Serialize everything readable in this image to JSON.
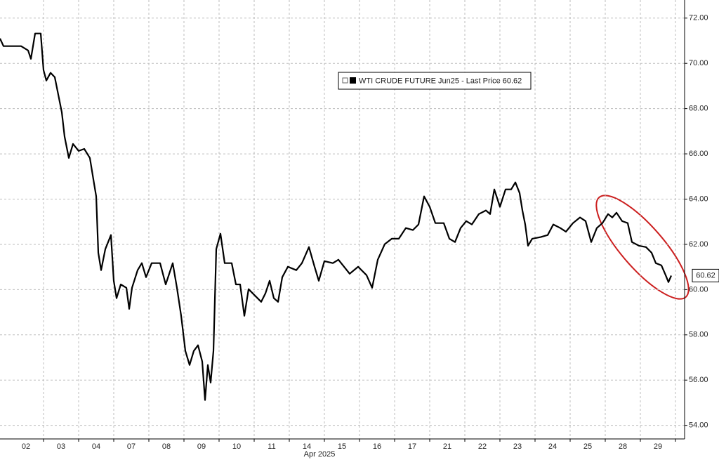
{
  "chart_data": {
    "type": "line",
    "x_label": "Apr 2025",
    "xlim": [
      -0.74,
      18.76
    ],
    "xticks": [
      {
        "value": 0,
        "label": "02"
      },
      {
        "value": 1,
        "label": "03"
      },
      {
        "value": 2,
        "label": "04"
      },
      {
        "value": 3,
        "label": "07"
      },
      {
        "value": 4,
        "label": "08"
      },
      {
        "value": 5,
        "label": "09"
      },
      {
        "value": 6,
        "label": "10"
      },
      {
        "value": 7,
        "label": "11"
      },
      {
        "value": 8,
        "label": "14"
      },
      {
        "value": 9,
        "label": "15"
      },
      {
        "value": 10,
        "label": "16"
      },
      {
        "value": 11,
        "label": "17"
      },
      {
        "value": 12,
        "label": "21"
      },
      {
        "value": 13,
        "label": "22"
      },
      {
        "value": 14,
        "label": "23"
      },
      {
        "value": 15,
        "label": "24"
      },
      {
        "value": 16,
        "label": "25"
      },
      {
        "value": 17,
        "label": "28"
      },
      {
        "value": 18,
        "label": "29"
      }
    ],
    "ylim": [
      53.4,
      72.8
    ],
    "yticks": [
      {
        "value": 54,
        "label": "54.00"
      },
      {
        "value": 56,
        "label": "56.00"
      },
      {
        "value": 58,
        "label": "58.00"
      },
      {
        "value": 60,
        "label": "60.00"
      },
      {
        "value": 62,
        "label": "62.00"
      },
      {
        "value": 64,
        "label": "64.00"
      },
      {
        "value": 66,
        "label": "66.00"
      },
      {
        "value": 68,
        "label": "68.00"
      },
      {
        "value": 70,
        "label": "70.00"
      },
      {
        "value": 72,
        "label": "72.00"
      }
    ],
    "grid": true,
    "last_price": 60.62,
    "x": [
      -0.74,
      -0.64,
      -0.14,
      0.06,
      0.14,
      0.26,
      0.42,
      0.5,
      0.58,
      0.7,
      0.82,
      0.9,
      1.02,
      1.1,
      1.22,
      1.34,
      1.5,
      1.66,
      1.82,
      1.94,
      2.0,
      2.06,
      2.14,
      2.26,
      2.42,
      2.5,
      2.58,
      2.7,
      2.86,
      2.94,
      3.02,
      3.18,
      3.3,
      3.42,
      3.58,
      3.82,
      3.98,
      4.18,
      4.3,
      4.42,
      4.54,
      4.66,
      4.78,
      4.9,
      5.02,
      5.1,
      5.18,
      5.26,
      5.34,
      5.42,
      5.54,
      5.66,
      5.86,
      5.98,
      6.1,
      6.22,
      6.34,
      6.5,
      6.7,
      6.82,
      6.94,
      7.06,
      7.18,
      7.3,
      7.46,
      7.7,
      7.86,
      8.06,
      8.22,
      8.34,
      8.5,
      8.74,
      8.9,
      9.06,
      9.22,
      9.46,
      9.7,
      9.86,
      10.02,
      10.22,
      10.42,
      10.62,
      10.82,
      11.02,
      11.18,
      11.34,
      11.5,
      11.66,
      11.9,
      12.06,
      12.22,
      12.38,
      12.54,
      12.7,
      12.9,
      13.1,
      13.22,
      13.34,
      13.5,
      13.66,
      13.82,
      13.94,
      14.06,
      14.14,
      14.22,
      14.3,
      14.42,
      14.66,
      14.86,
      15.02,
      15.22,
      15.38,
      15.58,
      15.78,
      15.94,
      16.1,
      16.26,
      16.42,
      16.58,
      16.7,
      16.82,
      16.98,
      17.14,
      17.26,
      17.46,
      17.66,
      17.82,
      17.94,
      18.1,
      18.22,
      18.3,
      18.38
    ],
    "series": [
      {
        "name": "WTI CRUDE FUTURE Jun25 - Last Price 60.62",
        "color": "#000000",
        "values": [
          71.1,
          70.76,
          70.76,
          70.57,
          70.2,
          71.32,
          71.32,
          69.7,
          69.24,
          69.58,
          69.39,
          68.77,
          67.84,
          66.76,
          65.82,
          66.44,
          66.13,
          66.22,
          65.82,
          64.68,
          64.12,
          61.63,
          60.86,
          61.79,
          62.41,
          60.39,
          59.62,
          60.23,
          60.08,
          59.15,
          60.08,
          60.86,
          61.17,
          60.55,
          61.17,
          61.17,
          60.23,
          61.17,
          60.08,
          58.84,
          57.29,
          56.67,
          57.29,
          57.54,
          56.82,
          55.12,
          56.67,
          55.89,
          57.29,
          61.79,
          62.47,
          61.17,
          61.17,
          60.23,
          60.23,
          58.84,
          60.02,
          59.77,
          59.46,
          59.83,
          60.39,
          59.62,
          59.46,
          60.55,
          61.01,
          60.86,
          61.17,
          61.88,
          61.01,
          60.39,
          61.26,
          61.17,
          61.32,
          61.01,
          60.7,
          61.01,
          60.64,
          60.08,
          61.32,
          62.01,
          62.25,
          62.25,
          62.72,
          62.63,
          62.88,
          64.12,
          63.66,
          62.94,
          62.94,
          62.25,
          62.1,
          62.72,
          63.03,
          62.88,
          63.34,
          63.5,
          63.34,
          64.43,
          63.66,
          64.43,
          64.43,
          64.74,
          64.27,
          63.5,
          62.88,
          61.94,
          62.25,
          62.32,
          62.41,
          62.88,
          62.72,
          62.56,
          62.94,
          63.19,
          63.03,
          62.1,
          62.72,
          62.94,
          63.34,
          63.19,
          63.4,
          63.03,
          62.94,
          62.1,
          61.94,
          61.88,
          61.63,
          61.17,
          61.07,
          60.64,
          60.33,
          60.62
        ]
      }
    ]
  }
}
